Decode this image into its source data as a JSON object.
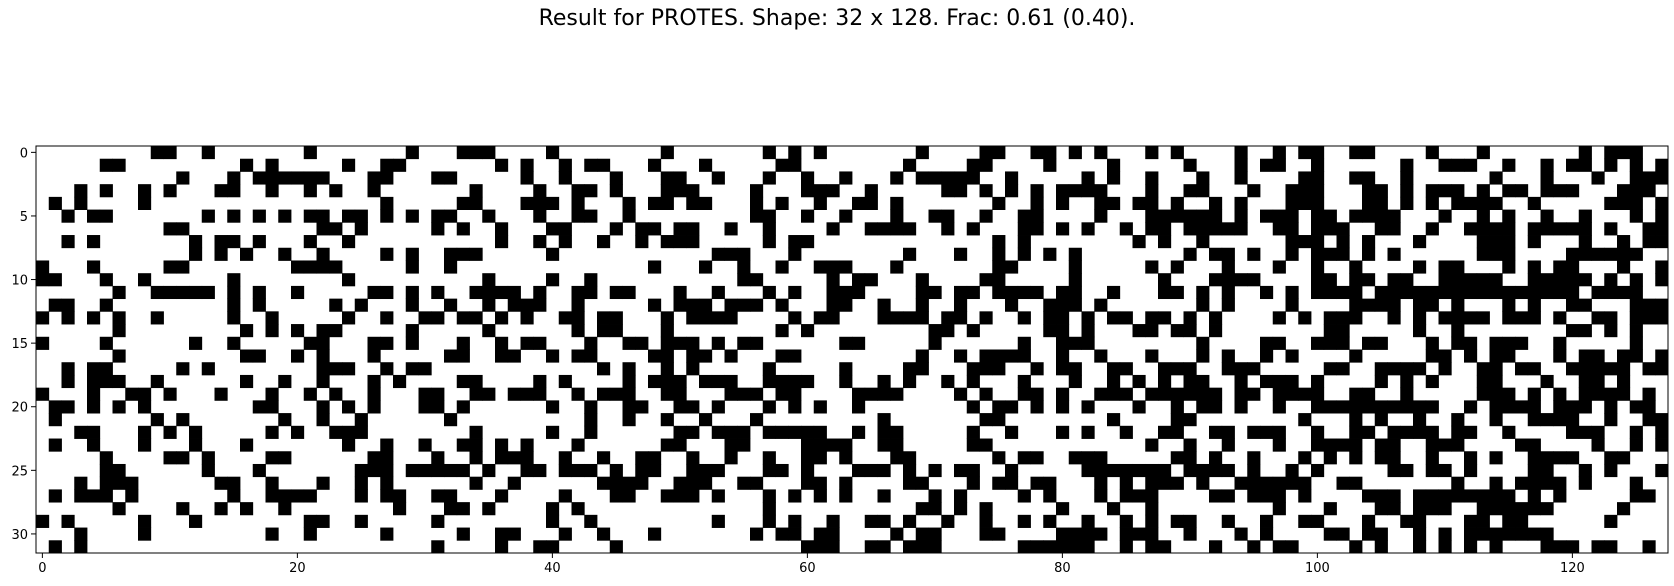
{
  "chart_data": {
    "type": "heatmap",
    "title": "Result for PROTES. Shape: 32 x 128. Frac: 0.61 (0.40).",
    "rows": 32,
    "cols": 128,
    "xticks": [
      0,
      20,
      40,
      60,
      80,
      100,
      120
    ],
    "yticks": [
      0,
      5,
      10,
      15,
      20,
      25,
      30
    ],
    "colormap": {
      "0": "#ffffff",
      "1": "#000000"
    },
    "grid": false,
    "fill_fraction": 0.4,
    "seed": 20240611,
    "matrix": []
  },
  "colors": {
    "filled": "#000000",
    "empty": "#ffffff",
    "axis": "#000000"
  }
}
